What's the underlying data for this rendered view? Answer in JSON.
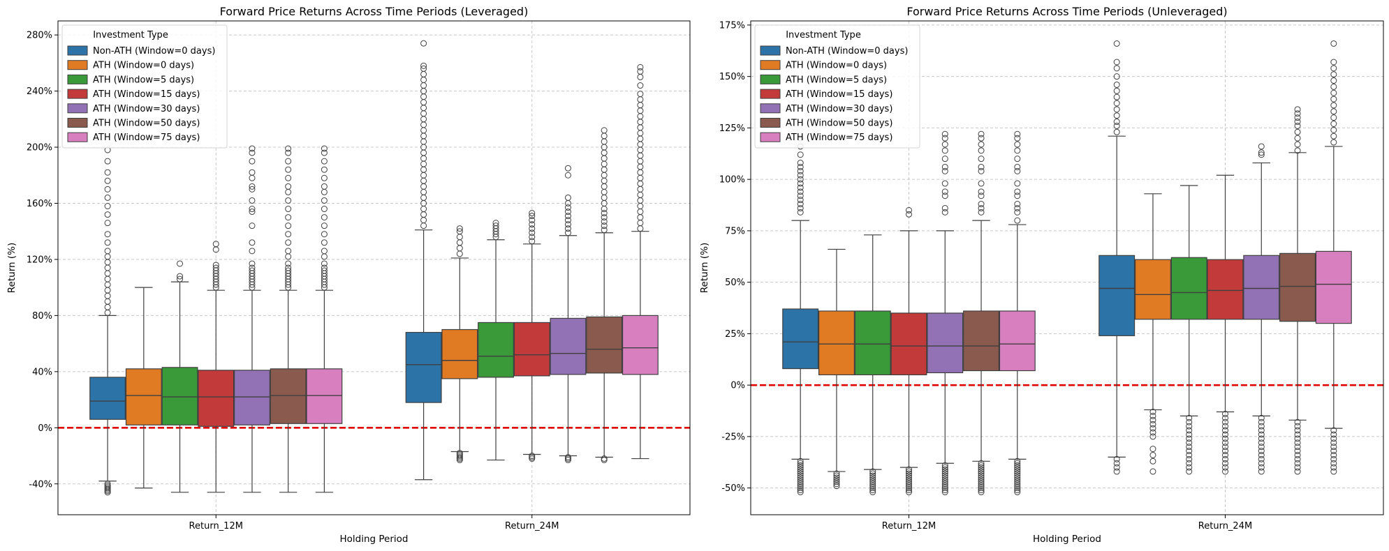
{
  "chart_data": [
    {
      "type": "box",
      "title": "Forward Price Returns Across Time Periods (Leveraged)",
      "xlabel": "Holding Period",
      "ylabel": "Return (%)",
      "categories": [
        "Return_12M",
        "Return_24M"
      ],
      "ylim": [
        -62,
        290
      ],
      "yticks": [
        -40,
        0,
        40,
        80,
        120,
        160,
        200,
        240,
        280
      ],
      "ytick_labels": [
        "-40%",
        "0%",
        "40%",
        "80%",
        "120%",
        "160%",
        "200%",
        "240%",
        "280%"
      ],
      "grid": true,
      "reference_line": {
        "y": 0,
        "color": "#e00000",
        "style": "dashed"
      },
      "legend": {
        "title": "Investment Type",
        "placement": "top-left"
      },
      "series": [
        {
          "name": "Non-ATH (Window=0 days)",
          "color": "#2c73a8",
          "boxes": [
            {
              "whislo": -38,
              "q1": 6,
              "median": 19,
              "q3": 36,
              "whishi": 80,
              "fliers": [
                -46,
                -45,
                -44,
                -43,
                -42,
                -41,
                -40,
                82,
                86,
                90,
                94,
                98,
                102,
                106,
                110,
                114,
                118,
                122,
                126,
                132,
                138,
                146,
                152,
                158,
                164,
                170,
                176,
                182,
                190,
                198
              ]
            },
            {
              "whislo": -37,
              "q1": 18,
              "median": 45,
              "q3": 68,
              "whishi": 141,
              "fliers": [
                144,
                148,
                152,
                156,
                160,
                164,
                168,
                172,
                176,
                180,
                184,
                188,
                192,
                196,
                200,
                204,
                208,
                212,
                216,
                220,
                224,
                228,
                232,
                236,
                240,
                244,
                248,
                252,
                256,
                258,
                274
              ]
            }
          ]
        },
        {
          "name": "ATH (Window=0 days)",
          "color": "#e07b24",
          "boxes": [
            {
              "whislo": -43,
              "q1": 2,
              "median": 23,
              "q3": 42,
              "whishi": 100,
              "fliers": []
            },
            {
              "whislo": -17,
              "q1": 35,
              "median": 48,
              "q3": 70,
              "whishi": 121,
              "fliers": [
                -23,
                -22,
                -21,
                -20,
                -19,
                -18,
                124,
                128,
                132,
                136,
                140,
                142
              ]
            }
          ]
        },
        {
          "name": "ATH (Window=5 days)",
          "color": "#3a9a3a",
          "boxes": [
            {
              "whislo": -46,
              "q1": 2,
              "median": 22,
              "q3": 43,
              "whishi": 104,
              "fliers": [
                106,
                108,
                117
              ]
            },
            {
              "whislo": -23,
              "q1": 36,
              "median": 51,
              "q3": 75,
              "whishi": 134,
              "fliers": [
                136,
                138,
                140,
                142,
                144,
                146
              ]
            }
          ]
        },
        {
          "name": "ATH (Window=15 days)",
          "color": "#c23a3a",
          "boxes": [
            {
              "whislo": -46,
              "q1": 1,
              "median": 22,
              "q3": 41,
              "whishi": 98,
              "fliers": [
                100,
                102,
                104,
                106,
                108,
                110,
                112,
                114,
                116,
                127,
                131
              ]
            },
            {
              "whislo": -19,
              "q1": 37,
              "median": 52,
              "q3": 75,
              "whishi": 131,
              "fliers": [
                -22,
                -21,
                -20,
                133,
                136,
                139,
                142,
                145,
                148,
                151,
                153
              ]
            }
          ]
        },
        {
          "name": "ATH (Window=30 days)",
          "color": "#9371b5",
          "boxes": [
            {
              "whislo": -46,
              "q1": 2,
              "median": 22,
              "q3": 41,
              "whishi": 98,
              "fliers": [
                100,
                102,
                104,
                106,
                108,
                110,
                112,
                114,
                117,
                126,
                132,
                144,
                154,
                156,
                162,
                170,
                172,
                178,
                182,
                190,
                196,
                199
              ]
            },
            {
              "whislo": -20,
              "q1": 38,
              "median": 53,
              "q3": 78,
              "whishi": 137,
              "fliers": [
                -23,
                -22,
                -21,
                139,
                142,
                145,
                148,
                151,
                154,
                157,
                160,
                164,
                180,
                185
              ]
            }
          ]
        },
        {
          "name": "ATH (Window=50 days)",
          "color": "#8a5a4e",
          "boxes": [
            {
              "whislo": -46,
              "q1": 3,
              "median": 23,
              "q3": 42,
              "whishi": 98,
              "fliers": [
                100,
                102,
                104,
                106,
                108,
                110,
                112,
                114,
                117,
                122,
                126,
                132,
                138,
                144,
                150,
                156,
                162,
                168,
                172,
                178,
                184,
                190,
                196,
                199
              ]
            },
            {
              "whislo": -21,
              "q1": 39,
              "median": 56,
              "q3": 79,
              "whishi": 139,
              "fliers": [
                -23,
                -22,
                141,
                144,
                147,
                150,
                153,
                156,
                160,
                164,
                168,
                172,
                176,
                180,
                184,
                188,
                192,
                196,
                200,
                204,
                208,
                212
              ]
            }
          ]
        },
        {
          "name": "ATH (Window=75 days)",
          "color": "#d77fbf",
          "boxes": [
            {
              "whislo": -46,
              "q1": 3,
              "median": 23,
              "q3": 42,
              "whishi": 98,
              "fliers": [
                100,
                102,
                104,
                106,
                108,
                110,
                112,
                114,
                117,
                122,
                126,
                132,
                138,
                144,
                150,
                156,
                162,
                168,
                172,
                178,
                184,
                190,
                196,
                199
              ]
            },
            {
              "whislo": -22,
              "q1": 38,
              "median": 57,
              "q3": 80,
              "whishi": 140,
              "fliers": [
                142,
                146,
                150,
                154,
                158,
                162,
                166,
                170,
                174,
                178,
                182,
                186,
                190,
                194,
                198,
                202,
                206,
                210,
                214,
                218,
                222,
                226,
                230,
                234,
                238,
                244,
                250,
                254,
                257
              ]
            }
          ]
        }
      ]
    },
    {
      "type": "box",
      "title": "Forward Price Returns Across Time Periods (Unleveraged)",
      "xlabel": "Holding Period",
      "ylabel": "Return (%)",
      "categories": [
        "Return_12M",
        "Return_24M"
      ],
      "ylim": [
        -63,
        177
      ],
      "yticks": [
        -50,
        -25,
        0,
        25,
        50,
        75,
        100,
        125,
        150,
        175
      ],
      "ytick_labels": [
        "-50%",
        "-25%",
        "0%",
        "25%",
        "50%",
        "75%",
        "100%",
        "125%",
        "150%",
        "175%"
      ],
      "grid": true,
      "reference_line": {
        "y": 0,
        "color": "#e00000",
        "style": "dashed"
      },
      "legend": {
        "title": "Investment Type",
        "placement": "top-left"
      },
      "series": [
        {
          "name": "Non-ATH (Window=0 days)",
          "color": "#2c73a8",
          "boxes": [
            {
              "whislo": -36,
              "q1": 8,
              "median": 21,
              "q3": 37,
              "whishi": 80,
              "fliers": [
                -52,
                -51,
                -50,
                -49,
                -48,
                -47,
                -46,
                -45,
                -44,
                -43,
                -42,
                -41,
                -40,
                -39,
                -38,
                -37,
                84,
                86,
                88,
                90,
                92,
                94,
                96,
                98,
                100,
                102,
                104,
                106,
                108,
                112,
                116,
                120
              ]
            },
            {
              "whislo": -35,
              "q1": 24,
              "median": 47,
              "q3": 63,
              "whishi": 121,
              "fliers": [
                -42,
                -40,
                -38,
                -36,
                123,
                126,
                128,
                131,
                134,
                137,
                140,
                143,
                146,
                150,
                154,
                157,
                166
              ]
            }
          ]
        },
        {
          "name": "ATH (Window=0 days)",
          "color": "#e07b24",
          "boxes": [
            {
              "whislo": -42,
              "q1": 5,
              "median": 20,
              "q3": 36,
              "whishi": 66,
              "fliers": [
                -49,
                -48,
                -47,
                -46,
                -45,
                -44,
                -43
              ]
            },
            {
              "whislo": -12,
              "q1": 32,
              "median": 44,
              "q3": 61,
              "whishi": 93,
              "fliers": [
                -42,
                -37,
                -34,
                -31,
                -25,
                -23,
                -21,
                -19,
                -17,
                -15,
                -13
              ]
            }
          ]
        },
        {
          "name": "ATH (Window=5 days)",
          "color": "#3a9a3a",
          "boxes": [
            {
              "whislo": -41,
              "q1": 5,
              "median": 20,
              "q3": 36,
              "whishi": 73,
              "fliers": [
                -52,
                -51,
                -50,
                -49,
                -48,
                -47,
                -46,
                -45,
                -44,
                -43,
                -42
              ]
            },
            {
              "whislo": -15,
              "q1": 32,
              "median": 45,
              "q3": 62,
              "whishi": 97,
              "fliers": [
                -42,
                -40,
                -38,
                -36,
                -34,
                -32,
                -30,
                -28,
                -26,
                -24,
                -22,
                -20,
                -18,
                -16
              ]
            }
          ]
        },
        {
          "name": "ATH (Window=15 days)",
          "color": "#c23a3a",
          "boxes": [
            {
              "whislo": -40,
              "q1": 5,
              "median": 19,
              "q3": 35,
              "whishi": 75,
              "fliers": [
                -52,
                -51,
                -50,
                -49,
                -48,
                -47,
                -46,
                -45,
                -44,
                -43,
                -42,
                -41,
                83,
                85
              ]
            },
            {
              "whislo": -13,
              "q1": 32,
              "median": 46,
              "q3": 61,
              "whishi": 102,
              "fliers": [
                -42,
                -40,
                -38,
                -36,
                -34,
                -32,
                -30,
                -28,
                -26,
                -24,
                -22,
                -20,
                -18,
                -16,
                -14
              ]
            }
          ]
        },
        {
          "name": "ATH (Window=30 days)",
          "color": "#9371b5",
          "boxes": [
            {
              "whislo": -38,
              "q1": 6,
              "median": 19,
              "q3": 35,
              "whishi": 75,
              "fliers": [
                -52,
                -51,
                -50,
                -49,
                -48,
                -47,
                -46,
                -45,
                -44,
                -43,
                -42,
                -41,
                -40,
                -39,
                84,
                86,
                92,
                94,
                98,
                104,
                106,
                110,
                114,
                117,
                120,
                122
              ]
            },
            {
              "whislo": -15,
              "q1": 32,
              "median": 47,
              "q3": 63,
              "whishi": 108,
              "fliers": [
                -42,
                -40,
                -38,
                -36,
                -34,
                -32,
                -30,
                -28,
                -26,
                -24,
                -22,
                -20,
                -18,
                -16,
                112,
                113,
                116
              ]
            }
          ]
        },
        {
          "name": "ATH (Window=50 days)",
          "color": "#8a5a4e",
          "boxes": [
            {
              "whislo": -37,
              "q1": 7,
              "median": 19,
              "q3": 36,
              "whishi": 80,
              "fliers": [
                -52,
                -51,
                -50,
                -49,
                -48,
                -47,
                -46,
                -45,
                -44,
                -43,
                -42,
                -41,
                -40,
                -39,
                -38,
                84,
                86,
                88,
                92,
                94,
                98,
                104,
                106,
                110,
                114,
                117,
                120,
                122
              ]
            },
            {
              "whislo": -17,
              "q1": 31,
              "median": 48,
              "q3": 64,
              "whishi": 113,
              "fliers": [
                -42,
                -40,
                -38,
                -36,
                -34,
                -32,
                -30,
                -28,
                -26,
                -24,
                -22,
                -20,
                -18,
                114,
                117,
                120,
                123,
                126,
                128,
                130,
                132,
                134
              ]
            }
          ]
        },
        {
          "name": "ATH (Window=75 days)",
          "color": "#d77fbf",
          "boxes": [
            {
              "whislo": -36,
              "q1": 7,
              "median": 20,
              "q3": 36,
              "whishi": 78,
              "fliers": [
                -52,
                -51,
                -50,
                -49,
                -48,
                -47,
                -46,
                -45,
                -44,
                -43,
                -42,
                -41,
                -40,
                -39,
                -38,
                -37,
                80,
                84,
                86,
                88,
                92,
                94,
                98,
                104,
                106,
                110,
                114,
                117,
                120,
                122
              ]
            },
            {
              "whislo": -21,
              "q1": 30,
              "median": 49,
              "q3": 65,
              "whishi": 116,
              "fliers": [
                -42,
                -40,
                -38,
                -36,
                -34,
                -32,
                -30,
                -28,
                -26,
                -24,
                -22,
                118,
                121,
                124,
                127,
                130,
                133,
                136,
                139,
                142,
                145,
                148,
                151,
                154,
                157,
                166
              ]
            }
          ]
        }
      ]
    }
  ]
}
